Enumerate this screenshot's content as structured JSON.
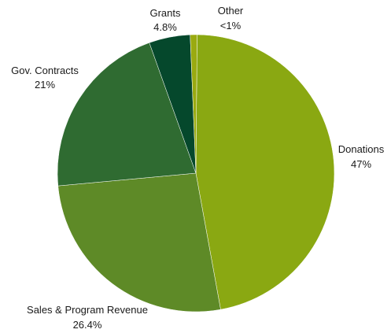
{
  "chart_data": {
    "type": "pie",
    "title": "",
    "slices": [
      {
        "label": "Donations",
        "value_text": "47%",
        "value": 47.0,
        "color": "#8aa812"
      },
      {
        "label": "Sales & Program Revenue",
        "value_text": "26.4%",
        "value": 26.4,
        "color": "#5e8a27"
      },
      {
        "label": "Gov. Contracts",
        "value_text": "21%",
        "value": 21.0,
        "color": "#2f6b31"
      },
      {
        "label": "Grants",
        "value_text": "4.8%",
        "value": 4.8,
        "color": "#05482c"
      },
      {
        "label": "Other",
        "value_text": "<1%",
        "value": 0.8,
        "color": "#9aaa10"
      }
    ]
  }
}
